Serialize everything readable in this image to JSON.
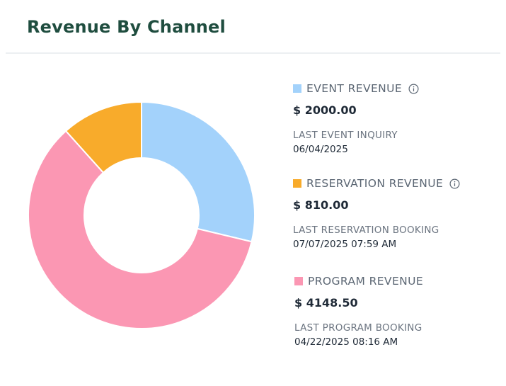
{
  "title": "Revenue By Channel",
  "chart_data": {
    "type": "pie",
    "title": "Revenue By Channel",
    "series": [
      {
        "name": "EVENT REVENUE",
        "value": 2000.0,
        "color": "#a3d2fb"
      },
      {
        "name": "PROGRAM REVENUE",
        "value": 4148.5,
        "color": "#fb97b3"
      },
      {
        "name": "RESERVATION REVENUE",
        "value": 810.0,
        "color": "#f8ab2b"
      }
    ],
    "donut": true,
    "legend_position": "right"
  },
  "legend": {
    "event": {
      "label": "EVENT REVENUE",
      "value": "$ 2000.00",
      "meta_label": "LAST EVENT INQUIRY",
      "meta_value": "06/04/2025",
      "color": "#a3d2fb",
      "info_icon": "info-icon"
    },
    "reservation": {
      "label": "RESERVATION REVENUE",
      "value": "$ 810.00",
      "meta_label": "LAST RESERVATION BOOKING",
      "meta_value": "07/07/2025 07:59 AM",
      "color": "#f8ab2b",
      "info_icon": "info-icon"
    },
    "program": {
      "label": "PROGRAM REVENUE",
      "value": "$ 4148.50",
      "meta_label": "LAST PROGRAM BOOKING",
      "meta_value": "04/22/2025 08:16 AM",
      "color": "#fb97b3"
    }
  }
}
